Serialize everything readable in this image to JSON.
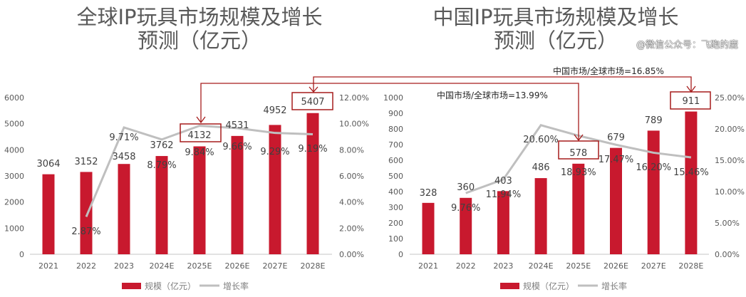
{
  "watermark": "@微信公众号：飞跑的鹿",
  "colors": {
    "bar": "#c8192e",
    "line": "#bfbfbf",
    "annotation": "#a61c1c",
    "text": "#595959"
  },
  "chart_data": [
    {
      "type": "bar",
      "title_line1": "全球IP玩具市场规模及增长",
      "title_line2": "预测（亿元）",
      "categories": [
        "2021",
        "2022",
        "2023",
        "2024E",
        "2025E",
        "2026E",
        "2027E",
        "2028E"
      ],
      "series": [
        {
          "name": "规模（亿元）",
          "type": "bar",
          "axis": "left",
          "values": [
            3064,
            3152,
            3458,
            3762,
            4132,
            4531,
            4952,
            5407
          ]
        },
        {
          "name": "增长率",
          "type": "line",
          "axis": "right",
          "values": [
            null,
            2.87,
            9.71,
            8.79,
            9.84,
            9.66,
            9.29,
            9.19
          ]
        }
      ],
      "ylim": [
        0,
        6000
      ],
      "yticks": [
        0,
        1000,
        2000,
        3000,
        4000,
        5000,
        6000
      ],
      "y2lim": [
        0,
        12
      ],
      "y2ticks": [
        "0.00%",
        "2.00%",
        "4.00%",
        "6.00%",
        "8.00%",
        "10.00%",
        "12.00%"
      ],
      "highlighted": [
        "2025E",
        "2028E"
      ],
      "legend": "bottom"
    },
    {
      "type": "bar",
      "title_line1": "中国IP玩具市场规模及增长",
      "title_line2": "预测（亿元）",
      "categories": [
        "2021",
        "2022",
        "2023",
        "2024E",
        "2025E",
        "2026E",
        "2027E",
        "2028E"
      ],
      "series": [
        {
          "name": "规模（亿元）",
          "type": "bar",
          "axis": "left",
          "values": [
            328,
            360,
            403,
            486,
            578,
            679,
            789,
            911
          ]
        },
        {
          "name": "增长率",
          "type": "line",
          "axis": "right",
          "values": [
            null,
            9.76,
            11.94,
            20.6,
            18.93,
            17.47,
            16.2,
            15.46
          ]
        }
      ],
      "ylim": [
        0,
        1000
      ],
      "yticks": [
        0,
        100,
        200,
        300,
        400,
        500,
        600,
        700,
        800,
        900,
        1000
      ],
      "y2lim": [
        0,
        25
      ],
      "y2ticks": [
        "0.00%",
        "5.00%",
        "10.00%",
        "15.00%",
        "20.00%",
        "25.00%"
      ],
      "highlighted": [
        "2025E",
        "2028E"
      ],
      "legend": "bottom"
    }
  ],
  "annotations": {
    "ratio_2025": "中国市场/全球市场=13.99%",
    "ratio_2028": "中国市场/全球市场=16.85%"
  }
}
